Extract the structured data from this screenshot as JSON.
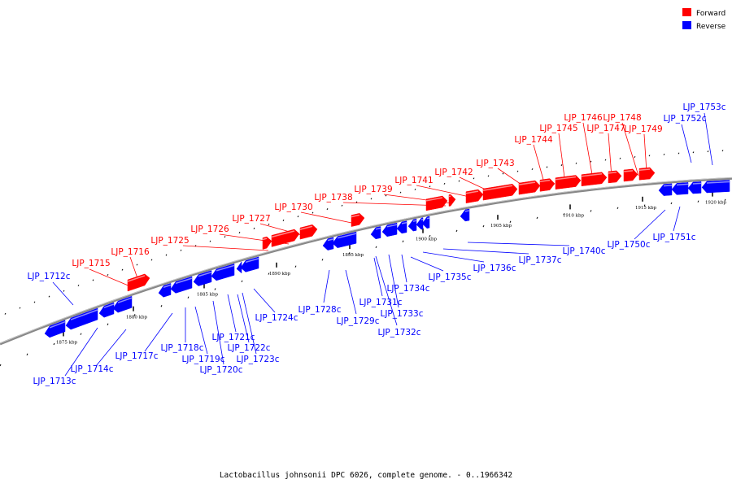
{
  "legend": [
    {
      "label": "Forward",
      "color": "#ff0000"
    },
    {
      "label": "Reverse",
      "color": "#0000ff"
    }
  ],
  "caption": "Lactobacillus johnsonii DPC 6026, complete genome. - 0..1966342",
  "tick_labels": [
    "1875 kbp",
    "1880 kbp",
    "1885 kbp",
    "1890 kbp",
    "1895 kbp",
    "1900 kbp",
    "1905 kbp",
    "1910 kbp",
    "1915 kbp",
    "1920 kbp"
  ],
  "forward_genes": [
    "LJP_1715",
    "LJP_1716",
    "LJP_1725",
    "LJP_1726",
    "LJP_1727",
    "LJP_1730",
    "LJP_1738",
    "LJP_1739",
    "LJP_1741",
    "LJP_1742",
    "LJP_1743",
    "LJP_1744",
    "LJP_1745",
    "LJP_1746",
    "LJP_1747",
    "LJP_1748",
    "LJP_1749"
  ],
  "reverse_genes": [
    "LJP_1712c",
    "LJP_1713c",
    "LJP_1714c",
    "LJP_1717c",
    "LJP_1718c",
    "LJP_1719c",
    "LJP_1720c",
    "LJP_1721c",
    "LJP_1722c",
    "LJP_1723c",
    "LJP_1724c",
    "LJP_1728c",
    "LJP_1729c",
    "LJP_1731c",
    "LJP_1732c",
    "LJP_1733c",
    "LJP_1734c",
    "LJP_1735c",
    "LJP_1736c",
    "LJP_1737c",
    "LJP_1740c",
    "LJP_1750c",
    "LJP_1751c",
    "LJP_1752c",
    "LJP_1753c"
  ]
}
